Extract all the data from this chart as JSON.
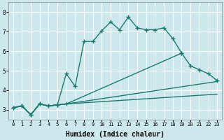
{
  "xlabel": "Humidex (Indice chaleur)",
  "bg_color": "#cde8ec",
  "grid_color": "#ffffff",
  "line_color": "#1a7a6e",
  "xlim": [
    -0.5,
    23.5
  ],
  "ylim": [
    2.5,
    8.5
  ],
  "yticks": [
    3,
    4,
    5,
    6,
    7,
    8
  ],
  "xticks": [
    0,
    1,
    2,
    3,
    4,
    5,
    6,
    7,
    8,
    9,
    10,
    11,
    12,
    13,
    14,
    15,
    16,
    17,
    18,
    19,
    20,
    21,
    22,
    23
  ],
  "line1_x": [
    0,
    1,
    2,
    3,
    4,
    5,
    6,
    7,
    8,
    9,
    10,
    11,
    12,
    13,
    14,
    15,
    16,
    17,
    18,
    19,
    20,
    21,
    22,
    23
  ],
  "line1_y": [
    3.1,
    3.2,
    2.75,
    3.3,
    3.2,
    3.25,
    4.85,
    4.2,
    6.5,
    6.5,
    7.05,
    7.5,
    7.1,
    7.75,
    7.2,
    7.1,
    7.1,
    7.2,
    6.65,
    5.9,
    null,
    null,
    null,
    null
  ],
  "line2_x": [
    0,
    1,
    2,
    3,
    4,
    5,
    6,
    7,
    8,
    9,
    10,
    11,
    12,
    13,
    14,
    15,
    16,
    17,
    18,
    19,
    20,
    21,
    22,
    23
  ],
  "line2_y": [
    3.1,
    3.2,
    2.75,
    3.3,
    3.2,
    3.25,
    3.3,
    null,
    null,
    null,
    null,
    null,
    null,
    null,
    null,
    null,
    null,
    null,
    null,
    5.9,
    5.25,
    5.05,
    4.85,
    4.5
  ],
  "line3_x": [
    0,
    1,
    2,
    3,
    4,
    5,
    6,
    23
  ],
  "line3_y": [
    3.1,
    3.2,
    2.75,
    3.3,
    3.2,
    3.25,
    3.3,
    4.45
  ],
  "line4_x": [
    0,
    1,
    2,
    3,
    4,
    5,
    6,
    23
  ],
  "line4_y": [
    3.1,
    3.2,
    2.75,
    3.3,
    3.2,
    3.25,
    3.3,
    3.8
  ]
}
